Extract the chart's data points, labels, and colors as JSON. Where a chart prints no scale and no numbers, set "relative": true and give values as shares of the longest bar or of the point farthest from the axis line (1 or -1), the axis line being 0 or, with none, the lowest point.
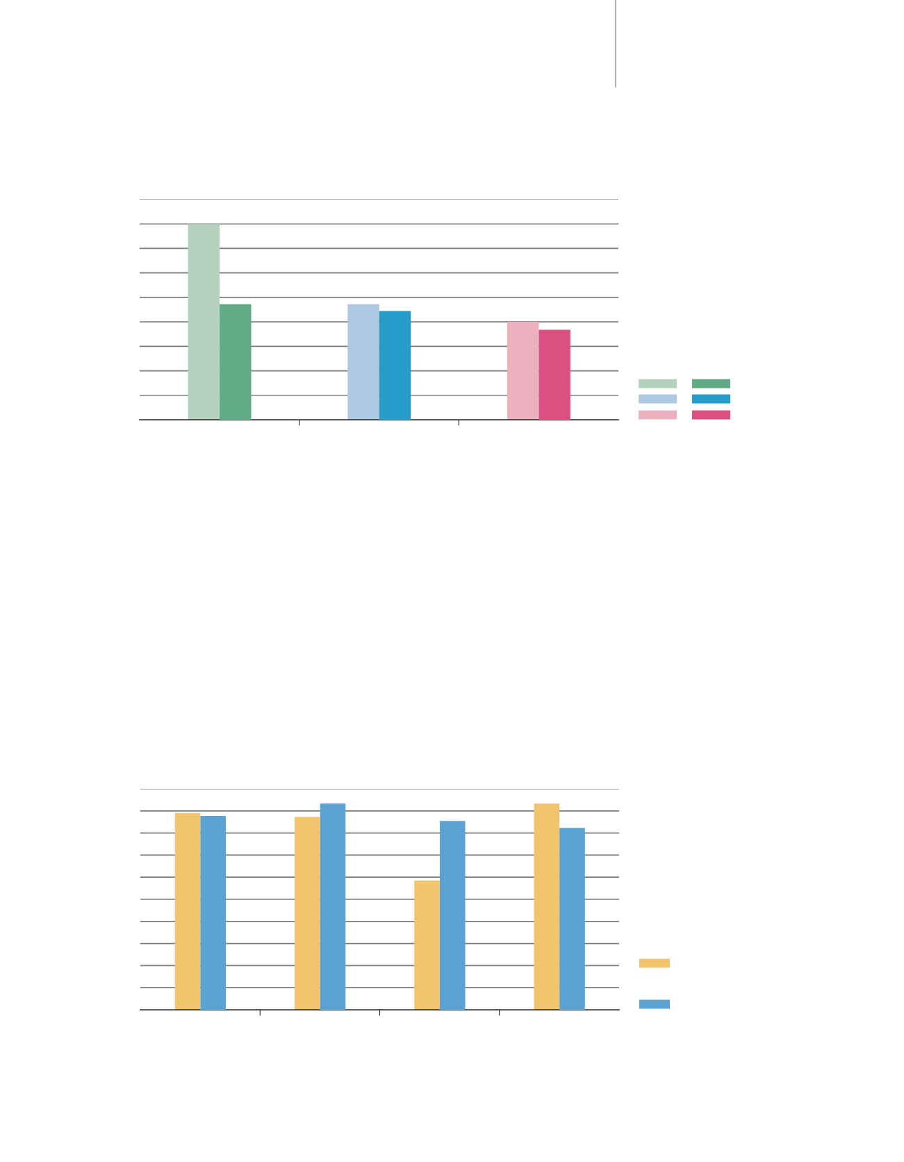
{
  "chart_data": [
    {
      "type": "bar",
      "relative": true,
      "grid": "y",
      "categories": [
        null,
        null,
        null
      ],
      "series": [
        {
          "colors": [
            "#b5d2bf",
            "#adcae2",
            "#ecb0bf"
          ],
          "values": [
            1.0,
            0.59,
            0.5
          ]
        },
        {
          "colors": [
            "#60aa86",
            "#279cc9",
            "#da5080"
          ],
          "values": [
            0.59,
            0.555,
            0.46
          ]
        }
      ]
    },
    {
      "type": "bar",
      "relative": true,
      "grid": "y",
      "categories": [
        null,
        null,
        null,
        null
      ],
      "series": [
        {
          "color": "#f2c46d",
          "values": [
            0.955,
            0.935,
            0.627,
            1.0
          ]
        },
        {
          "color": "#5ba3d3",
          "values": [
            0.94,
            1.0,
            0.916,
            0.882
          ]
        }
      ]
    }
  ]
}
